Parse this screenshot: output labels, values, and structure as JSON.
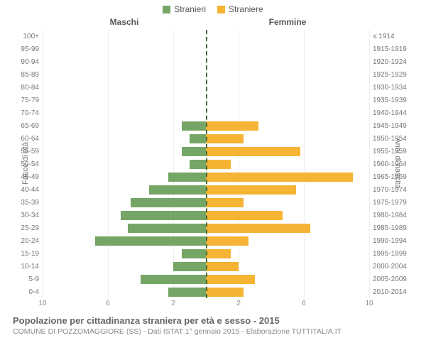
{
  "legend": {
    "male": {
      "label": "Stranieri",
      "color": "#75a666"
    },
    "female": {
      "label": "Straniere",
      "color": "#f5b434"
    }
  },
  "headers": {
    "left": "Maschi",
    "right": "Femmine"
  },
  "y_titles": {
    "left": "Fasce di età",
    "right": "Anni di nascita"
  },
  "x_axis": {
    "max": 10,
    "ticks": [
      10,
      6,
      2,
      2,
      6,
      10
    ]
  },
  "rows": [
    {
      "age": "100+",
      "birth": "≤ 1914",
      "m": 0,
      "f": 0
    },
    {
      "age": "95-99",
      "birth": "1915-1919",
      "m": 0,
      "f": 0
    },
    {
      "age": "90-94",
      "birth": "1920-1924",
      "m": 0,
      "f": 0
    },
    {
      "age": "85-89",
      "birth": "1925-1929",
      "m": 0,
      "f": 0
    },
    {
      "age": "80-84",
      "birth": "1930-1934",
      "m": 0,
      "f": 0
    },
    {
      "age": "75-79",
      "birth": "1935-1939",
      "m": 0,
      "f": 0
    },
    {
      "age": "70-74",
      "birth": "1940-1944",
      "m": 0,
      "f": 0
    },
    {
      "age": "65-69",
      "birth": "1945-1949",
      "m": 1.5,
      "f": 3.2
    },
    {
      "age": "60-64",
      "birth": "1950-1954",
      "m": 1.0,
      "f": 2.3
    },
    {
      "age": "55-59",
      "birth": "1955-1959",
      "m": 1.5,
      "f": 5.8
    },
    {
      "age": "50-54",
      "birth": "1960-1964",
      "m": 1.0,
      "f": 1.5
    },
    {
      "age": "45-49",
      "birth": "1965-1969",
      "m": 2.3,
      "f": 9.0
    },
    {
      "age": "40-44",
      "birth": "1970-1974",
      "m": 3.5,
      "f": 5.5
    },
    {
      "age": "35-39",
      "birth": "1975-1979",
      "m": 4.6,
      "f": 2.3
    },
    {
      "age": "30-34",
      "birth": "1980-1984",
      "m": 5.2,
      "f": 4.7
    },
    {
      "age": "25-29",
      "birth": "1985-1989",
      "m": 4.8,
      "f": 6.4
    },
    {
      "age": "20-24",
      "birth": "1990-1994",
      "m": 6.8,
      "f": 2.6
    },
    {
      "age": "15-19",
      "birth": "1995-1999",
      "m": 1.5,
      "f": 1.5
    },
    {
      "age": "10-14",
      "birth": "2000-2004",
      "m": 2.0,
      "f": 2.0
    },
    {
      "age": "5-9",
      "birth": "2005-2009",
      "m": 4.0,
      "f": 3.0
    },
    {
      "age": "0-4",
      "birth": "2010-2014",
      "m": 2.3,
      "f": 2.3
    }
  ],
  "style": {
    "male_color": "#75a666",
    "female_color": "#f5b434",
    "grid_color": "#eeeeee",
    "centerline_color": "#4a6a3a",
    "background": "#ffffff"
  },
  "footer": {
    "title": "Popolazione per cittadinanza straniera per età e sesso - 2015",
    "subtitle": "COMUNE DI POZZOMAGGIORE (SS) - Dati ISTAT 1° gennaio 2015 - Elaborazione TUTTITALIA.IT"
  }
}
